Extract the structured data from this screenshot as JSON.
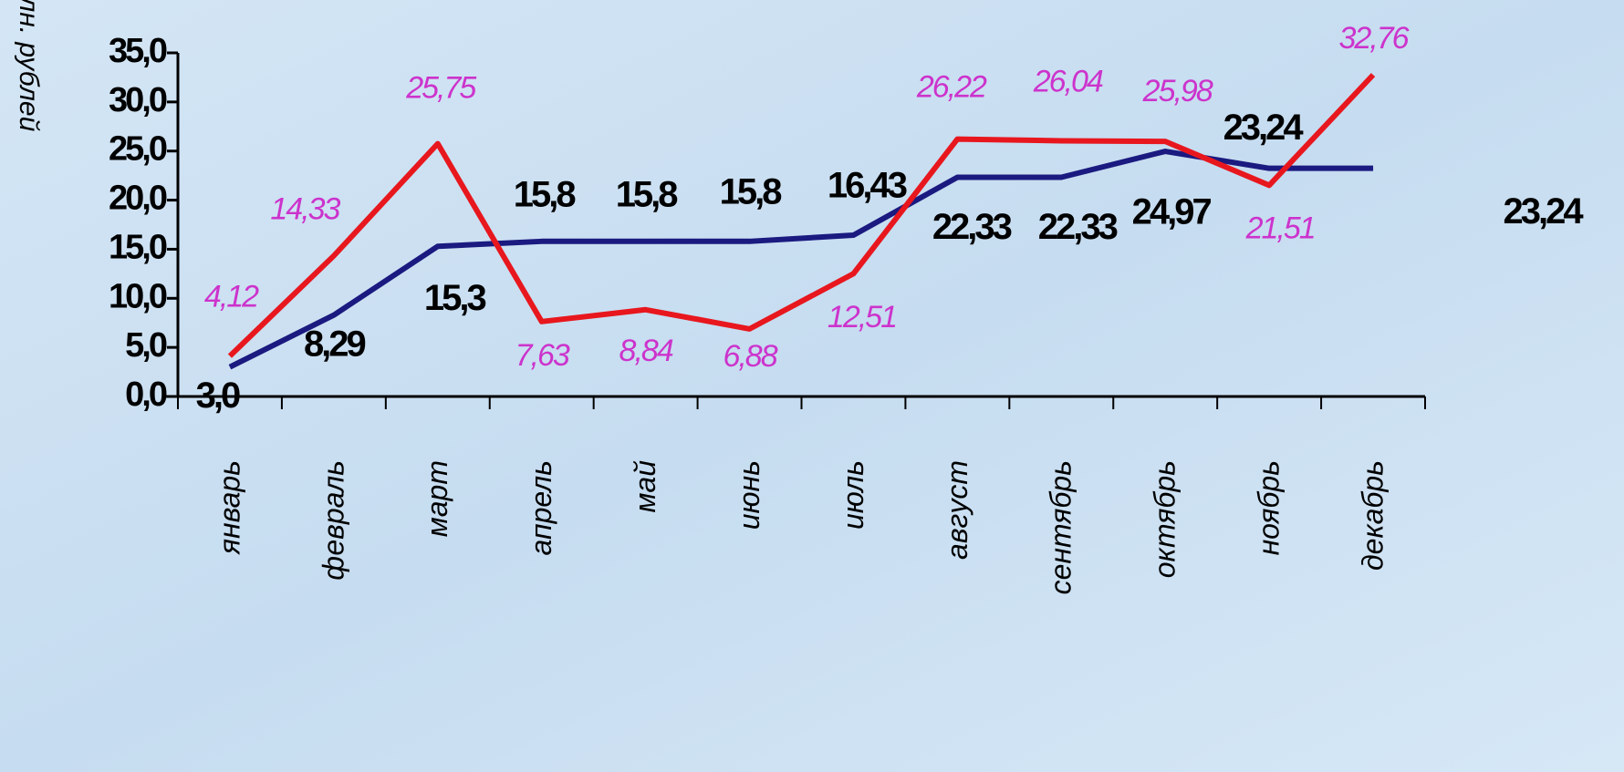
{
  "chart_data": {
    "type": "line",
    "y_label": "млн. рублей",
    "categories": [
      "январь",
      "февраль",
      "март",
      "апрель",
      "май",
      "июнь",
      "июль",
      "август",
      "сентябрь",
      "октябрь",
      "ноябрь",
      "декабрь"
    ],
    "series": [
      {
        "color": "#1a1a80",
        "values": [
          3.0,
          8.29,
          15.3,
          15.8,
          15.8,
          15.8,
          16.43,
          22.33,
          22.33,
          24.97,
          23.24,
          23.24
        ],
        "value_labels": [
          "3,0",
          "8,29",
          "15,3",
          "15,8",
          "15,8",
          "15,8",
          "16,43",
          "22,33",
          "22,33",
          "24,97",
          "23,24",
          "23,24"
        ]
      },
      {
        "color": "#e8171e",
        "values": [
          4.12,
          14.33,
          25.75,
          7.63,
          8.84,
          6.88,
          12.51,
          26.22,
          26.04,
          25.98,
          21.51,
          32.76
        ],
        "value_labels": [
          "4,12",
          "14,33",
          "25,75",
          "7,63",
          "8,84",
          "6,88",
          "12,51",
          "26,22",
          "26,04",
          "25,98",
          "21,51",
          "32,76"
        ]
      }
    ],
    "ylim": [
      0,
      35
    ],
    "yticks": [
      {
        "value": 0,
        "label": "0,0"
      },
      {
        "value": 5,
        "label": "5,0"
      },
      {
        "value": 10,
        "label": "10,0"
      },
      {
        "value": 15,
        "label": "15,0"
      },
      {
        "value": 20,
        "label": "20,0"
      },
      {
        "value": 25,
        "label": "25,0"
      },
      {
        "value": 30,
        "label": "30,0"
      },
      {
        "value": 35,
        "label": "35,0"
      }
    ]
  }
}
